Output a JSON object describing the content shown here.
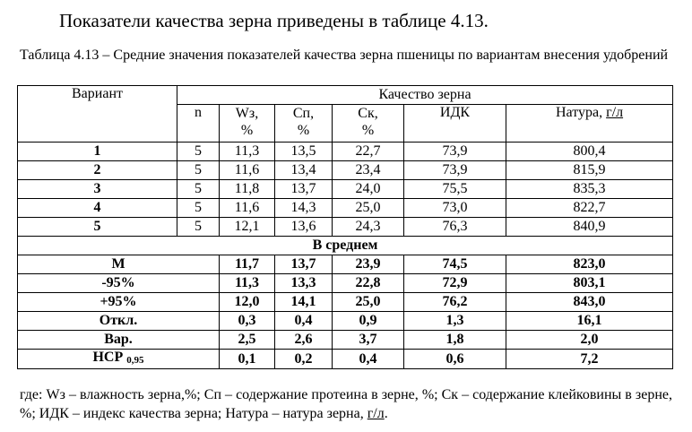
{
  "intro": "Показатели качества зерна приведены в таблице 4.13.",
  "caption": "Таблица 4.13 – Средние значения показателей качества зерна пшеницы по вариантам внесения удобрений",
  "table": {
    "header": {
      "variant": "Вариант",
      "group": "Качество зерна",
      "n": "n",
      "w_top": "Wз,",
      "w_bottom": "%",
      "sp_top": "Сп,",
      "sp_bottom": "%",
      "sk_top": "Ск,",
      "sk_bottom": "%",
      "idk": "ИДК",
      "natura_prefix": "Натура, ",
      "natura_unit": "г/л"
    },
    "rows": [
      {
        "variant": "1",
        "n": "5",
        "w": "11,3",
        "sp": "13,5",
        "sk": "22,7",
        "idk": "73,9",
        "natura": "800,4"
      },
      {
        "variant": "2",
        "n": "5",
        "w": "11,6",
        "sp": "13,4",
        "sk": "23,4",
        "idk": "73,9",
        "natura": "815,9"
      },
      {
        "variant": "3",
        "n": "5",
        "w": "11,8",
        "sp": "13,7",
        "sk": "24,0",
        "idk": "75,5",
        "natura": "835,3"
      },
      {
        "variant": "4",
        "n": "5",
        "w": "11,6",
        "sp": "14,3",
        "sk": "25,0",
        "idk": "73,0",
        "natura": "822,7"
      },
      {
        "variant": "5",
        "n": "5",
        "w": "12,1",
        "sp": "13,6",
        "sk": "24,3",
        "idk": "76,3",
        "natura": "840,9"
      }
    ],
    "average_label": "В среднем",
    "stats": [
      {
        "label": "М",
        "w": "11,7",
        "sp": "13,7",
        "sk": "23,9",
        "idk": "74,5",
        "natura": "823,0"
      },
      {
        "label": "-95%",
        "w": "11,3",
        "sp": "13,3",
        "sk": "22,8",
        "idk": "72,9",
        "natura": "803,1"
      },
      {
        "label": "+95%",
        "w": "12,0",
        "sp": "14,1",
        "sk": "25,0",
        "idk": "76,2",
        "natura": "843,0"
      },
      {
        "label": "Откл.",
        "w": "0,3",
        "sp": "0,4",
        "sk": "0,9",
        "idk": "1,3",
        "natura": "16,1"
      },
      {
        "label": "Вар.",
        "w": "2,5",
        "sp": "2,6",
        "sk": "3,7",
        "idk": "1,8",
        "natura": "2,0"
      },
      {
        "label": "НСР ",
        "label_sub": "0,95",
        "w": "0,1",
        "sp": "0,2",
        "sk": "0,4",
        "idk": "0,6",
        "natura": "7,2"
      }
    ]
  },
  "footnote": {
    "text_before": "где: Wз – влажность зерна,%; Сп – содержание протеина в зерне, %; Ск – содержание клейковины в зерне, %; ИДК – индекс качества зерна; Натура – натура зерна, ",
    "unit": "г/л",
    "text_after": "."
  }
}
